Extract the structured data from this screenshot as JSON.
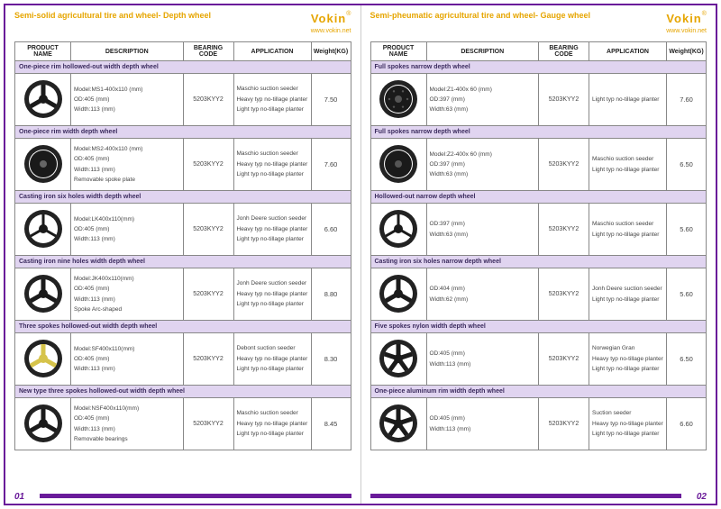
{
  "brand": "Vokin",
  "reg": "®",
  "url": "www.vokin.net",
  "cols": [
    "PRODUCT NAME",
    "DESCRIPTION",
    "BEARING CODE",
    "APPLICATION",
    "Weight(KG)"
  ],
  "accent_color": "#6a1b9a",
  "title_color": "#e6a500",
  "section_bg": "#e0d4f0",
  "left": {
    "title": "Semi-solid agricultural tire and wheel- Depth wheel",
    "pagenum": "01",
    "rows": [
      {
        "section": "One-piece rim hollowed-out width depth wheel"
      },
      {
        "wheel": {
          "type": "3spoke",
          "rim": "#1a1a1a"
        },
        "desc": [
          "Model:MS1-400x110 (mm)",
          "OD:405 (mm)",
          "Width:113 (mm)"
        ],
        "bcode": "5203KYY2",
        "app": [
          "Maschio suction seeder",
          "Heavy typ no-tillage planter",
          "Light typ no-tillage planter"
        ],
        "wt": "7.50"
      },
      {
        "section": "One-piece rim width depth wheel"
      },
      {
        "wheel": {
          "type": "solid",
          "rim": "#1a1a1a"
        },
        "desc": [
          "Model:MS2-400x110 (mm)",
          "OD:405 (mm)",
          "Width:113 (mm)",
          "Removable spoke plate"
        ],
        "bcode": "5203KYY2",
        "app": [
          "Maschio suction seeder",
          "Heavy typ no-tillage planter",
          "Light typ no-tillage planter"
        ],
        "wt": "7.60"
      },
      {
        "section": "Casting iron six holes width depth wheel"
      },
      {
        "wheel": {
          "type": "3spoke-thin",
          "rim": "#1a1a1a"
        },
        "desc": [
          "Model:LK400x110(mm)",
          "OD:405 (mm)",
          "Width:113 (mm)"
        ],
        "bcode": "5203KYY2",
        "app": [
          "Jonh Deere suction seeder",
          "Heavy typ no-tillage planter",
          "Light typ no-tillage planter"
        ],
        "wt": "6.60"
      },
      {
        "section": "Casting iron nine holes width depth wheel"
      },
      {
        "wheel": {
          "type": "3spoke-curve",
          "rim": "#1a1a1a"
        },
        "desc": [
          "Model:JK400x110(mm)",
          "OD:405 (mm)",
          "Width:113 (mm)",
          "Spoke Arc-shaped"
        ],
        "bcode": "5203KYY2",
        "app": [
          "Jonh Deere suction seeder",
          "Heavy typ no-tillage planter",
          "Light typ no-tillage planter"
        ],
        "wt": "8.80"
      },
      {
        "section": "Three spokes hollowed-out width depth wheel"
      },
      {
        "wheel": {
          "type": "3spoke",
          "rim": "#d6c34a"
        },
        "desc": [
          "Model:SF400x110(mm)",
          "OD:405 (mm)",
          "Width:113 (mm)"
        ],
        "bcode": "5203KYY2",
        "app": [
          "Debont suction seeder",
          "Heavy typ no-tillage planter",
          "Light typ no-tillage planter"
        ],
        "wt": "8.30"
      },
      {
        "section": "New type three spokes hollowed-out width depth wheel"
      },
      {
        "wheel": {
          "type": "3spoke",
          "rim": "#1a1a1a"
        },
        "desc": [
          "Model:NSF400x110(mm)",
          "OD:405 (mm)",
          "Width:113 (mm)",
          "Removable bearings"
        ],
        "bcode": "5203KYY2",
        "app": [
          "Maschio suction seeder",
          "Heavy typ no-tillage planter",
          "Light typ no-tillage planter"
        ],
        "wt": "8.45"
      }
    ]
  },
  "right": {
    "title": "Semi-pheumatic agricultural tire and wheel- Gauge wheel",
    "pagenum": "02",
    "rows": [
      {
        "section": "Full spokes narrow depth wheel"
      },
      {
        "wheel": {
          "type": "disc-dots",
          "rim": "#1a1a1a"
        },
        "desc": [
          "Model:Z1-400x 60 (mm)",
          "OD:397 (mm)",
          "Width:63 (mm)"
        ],
        "bcode": "5203KYY2",
        "app": [
          "Light typ no-tillage planter"
        ],
        "wt": "7.60"
      },
      {
        "section": "Full spokes narrow depth wheel"
      },
      {
        "wheel": {
          "type": "disc",
          "rim": "#1a1a1a"
        },
        "desc": [
          "Model:Z2-400x 60 (mm)",
          "OD:397 (mm)",
          "Width:63 (mm)"
        ],
        "bcode": "5203KYY2",
        "app": [
          "Maschio suction seeder",
          "Light typ no-tillage planter"
        ],
        "wt": "6.50"
      },
      {
        "section": "Hollowed-out narrow depth wheel"
      },
      {
        "wheel": {
          "type": "3spoke-thin",
          "rim": "#1a1a1a"
        },
        "desc": [
          "OD:397 (mm)",
          "Width:63 (mm)"
        ],
        "bcode": "5203KYY2",
        "app": [
          "Maschio suction seeder",
          "Light typ no-tillage planter"
        ],
        "wt": "5.60"
      },
      {
        "section": "Casting iron six holes narrow depth wheel"
      },
      {
        "wheel": {
          "type": "3spoke-curve",
          "rim": "#1a1a1a"
        },
        "desc": [
          "OD:404 (mm)",
          "Width:62 (mm)"
        ],
        "bcode": "5203KYY2",
        "app": [
          "Jonh Deere suction seeder",
          "Light typ no-tillage planter"
        ],
        "wt": "5.60"
      },
      {
        "section": "Five spokes nylon width depth wheel"
      },
      {
        "wheel": {
          "type": "5spoke",
          "rim": "#1a1a1a"
        },
        "desc": [
          "OD:405 (mm)",
          "Width:113 (mm)"
        ],
        "bcode": "5203KYY2",
        "app": [
          "Norwegian Gran",
          "Heavy typ no-tillage planter",
          "Light typ no-tillage planter"
        ],
        "wt": "6.50"
      },
      {
        "section": "One-piece aluminum rim width depth wheel"
      },
      {
        "wheel": {
          "type": "5spoke",
          "rim": "#1a1a1a"
        },
        "desc": [
          "OD:405 (mm)",
          "Width:113 (mm)"
        ],
        "bcode": "5203KYY2",
        "app": [
          "Suction seeder",
          "Heavy typ no-tillage planter",
          "Light typ no-tillage planter"
        ],
        "wt": "6.60"
      }
    ]
  }
}
